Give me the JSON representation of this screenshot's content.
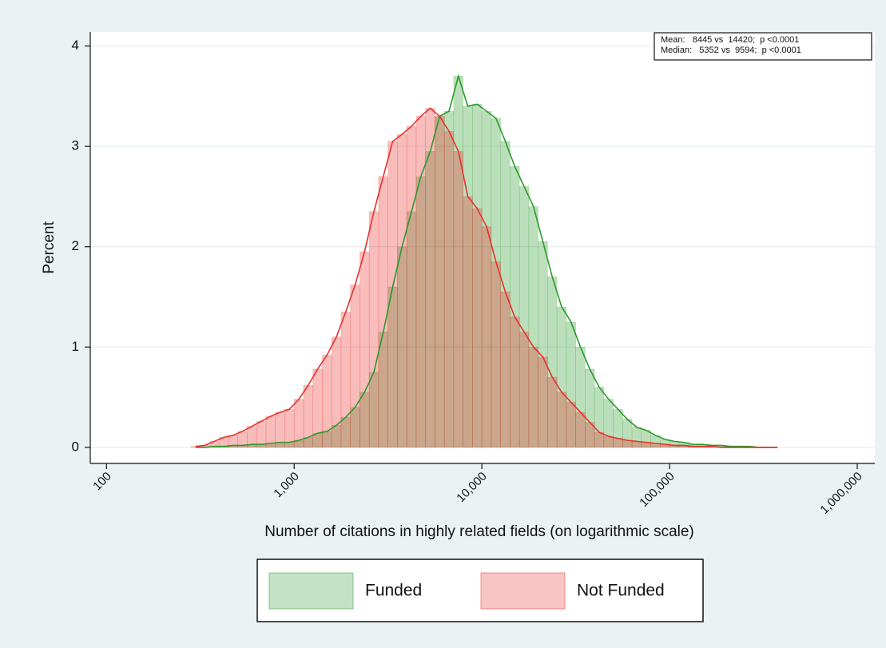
{
  "chart_data": {
    "type": "histogram",
    "xlabel": "Number of citations in highly related fields (on logarithmic scale)",
    "ylabel": "Percent",
    "xscale": "log",
    "grid": true,
    "legend": "bottom",
    "annotations": [
      "Mean:   8445 vs  14420;  p <0.0001",
      "Median:   5352 vs  9594;  p <0.0001"
    ],
    "xlim": [
      82,
      1240000
    ],
    "xticks": [
      100,
      {
        "value": 1000,
        "label": "1,000"
      },
      {
        "value": 10000,
        "label": "10,000"
      },
      {
        "value": 100000,
        "label": "100,000"
      },
      {
        "value": 1000000,
        "label": "1,000,000"
      }
    ],
    "ylim": [
      -0.16,
      4.14
    ],
    "yticks": [
      0,
      1,
      2,
      3,
      4
    ],
    "bins": [
      282,
      316,
      355,
      398,
      447,
      501,
      562,
      631,
      708,
      794,
      891,
      1000,
      1122,
      1259,
      1413,
      1585,
      1778,
      1995,
      2239,
      2512,
      2818,
      3162,
      3548,
      3981,
      4467,
      5012,
      5623,
      6310,
      7079,
      7943,
      8913,
      10000,
      11220,
      12589,
      14125,
      15849,
      17783,
      19953,
      22387,
      25119,
      28184,
      31623,
      35481,
      39811,
      44668,
      50119,
      56234,
      63096,
      70795,
      79433,
      89125,
      100000,
      112202,
      125893,
      141254,
      158489,
      177828,
      199526,
      223872,
      251189,
      281838,
      316228,
      354813,
      398107
    ],
    "series": [
      {
        "name": "Funded",
        "color": "#2a9a2a",
        "values": [
          0.0,
          0.0,
          0.01,
          0.01,
          0.02,
          0.02,
          0.03,
          0.03,
          0.04,
          0.05,
          0.05,
          0.07,
          0.1,
          0.14,
          0.16,
          0.22,
          0.3,
          0.4,
          0.55,
          0.75,
          1.15,
          1.6,
          2.0,
          2.35,
          2.7,
          2.95,
          3.3,
          3.35,
          3.7,
          3.4,
          3.42,
          3.35,
          3.28,
          3.05,
          2.8,
          2.6,
          2.4,
          2.05,
          1.7,
          1.4,
          1.25,
          1.0,
          0.78,
          0.6,
          0.48,
          0.38,
          0.28,
          0.2,
          0.17,
          0.12,
          0.08,
          0.06,
          0.05,
          0.03,
          0.03,
          0.02,
          0.02,
          0.01,
          0.01,
          0.01,
          0.0,
          0.0,
          0.0
        ]
      },
      {
        "name": "Not Funded",
        "color": "#e8302a",
        "values": [
          0.01,
          0.02,
          0.06,
          0.1,
          0.12,
          0.16,
          0.21,
          0.26,
          0.31,
          0.35,
          0.38,
          0.48,
          0.62,
          0.78,
          0.92,
          1.1,
          1.35,
          1.62,
          1.95,
          2.35,
          2.7,
          3.05,
          3.12,
          3.2,
          3.3,
          3.38,
          3.3,
          3.15,
          2.95,
          2.5,
          2.38,
          2.2,
          1.85,
          1.55,
          1.3,
          1.15,
          1.0,
          0.9,
          0.7,
          0.55,
          0.45,
          0.35,
          0.25,
          0.15,
          0.11,
          0.09,
          0.07,
          0.06,
          0.05,
          0.04,
          0.03,
          0.02,
          0.02,
          0.01,
          0.01,
          0.01,
          0.0,
          0.0,
          0.0,
          0.0,
          0.0,
          0.0,
          0.0
        ]
      }
    ]
  }
}
